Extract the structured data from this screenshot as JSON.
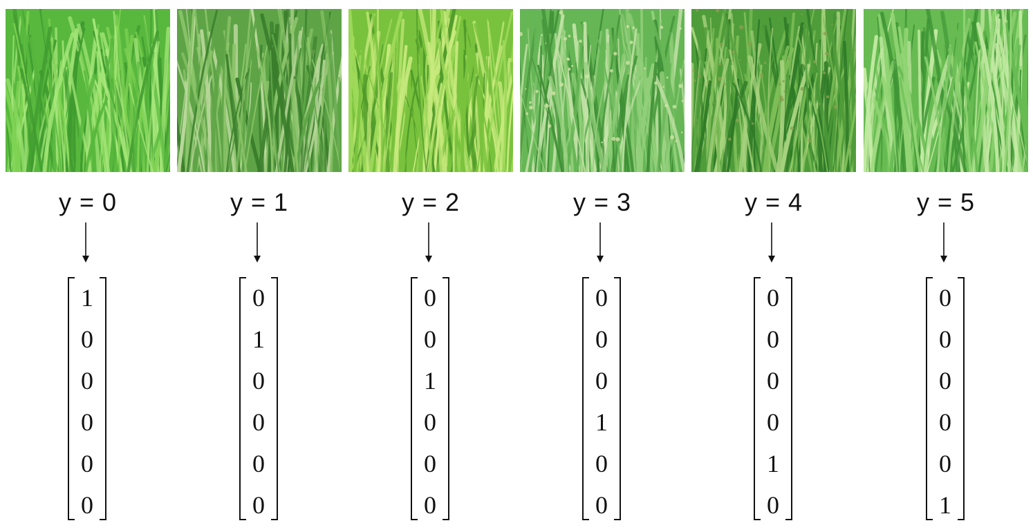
{
  "figure": {
    "columns": [
      {
        "label": "y = 0",
        "vector": [
          "1",
          "0",
          "0",
          "0",
          "0",
          "0"
        ],
        "photo": "rice-field-photo"
      },
      {
        "label": "y = 1",
        "vector": [
          "0",
          "1",
          "0",
          "0",
          "0",
          "0"
        ],
        "photo": "weedy-grass-photo"
      },
      {
        "label": "y = 2",
        "vector": [
          "0",
          "0",
          "1",
          "0",
          "0",
          "0"
        ],
        "photo": "weedy-grass-photo"
      },
      {
        "label": "y = 3",
        "vector": [
          "0",
          "0",
          "0",
          "1",
          "0",
          "0"
        ],
        "photo": "flowering-grass-photo"
      },
      {
        "label": "y = 4",
        "vector": [
          "0",
          "0",
          "0",
          "0",
          "1",
          "0"
        ],
        "photo": "seed-head-grass-photo"
      },
      {
        "label": "y = 5",
        "vector": [
          "0",
          "0",
          "0",
          "0",
          "0",
          "1"
        ],
        "photo": "broadleaf-grass-photo"
      }
    ],
    "colors": {
      "text": "#111111",
      "grass_dark": "#2f8a2a",
      "grass_mid": "#5dbb43",
      "grass_light": "#a8e07a",
      "background": "#ffffff"
    }
  }
}
